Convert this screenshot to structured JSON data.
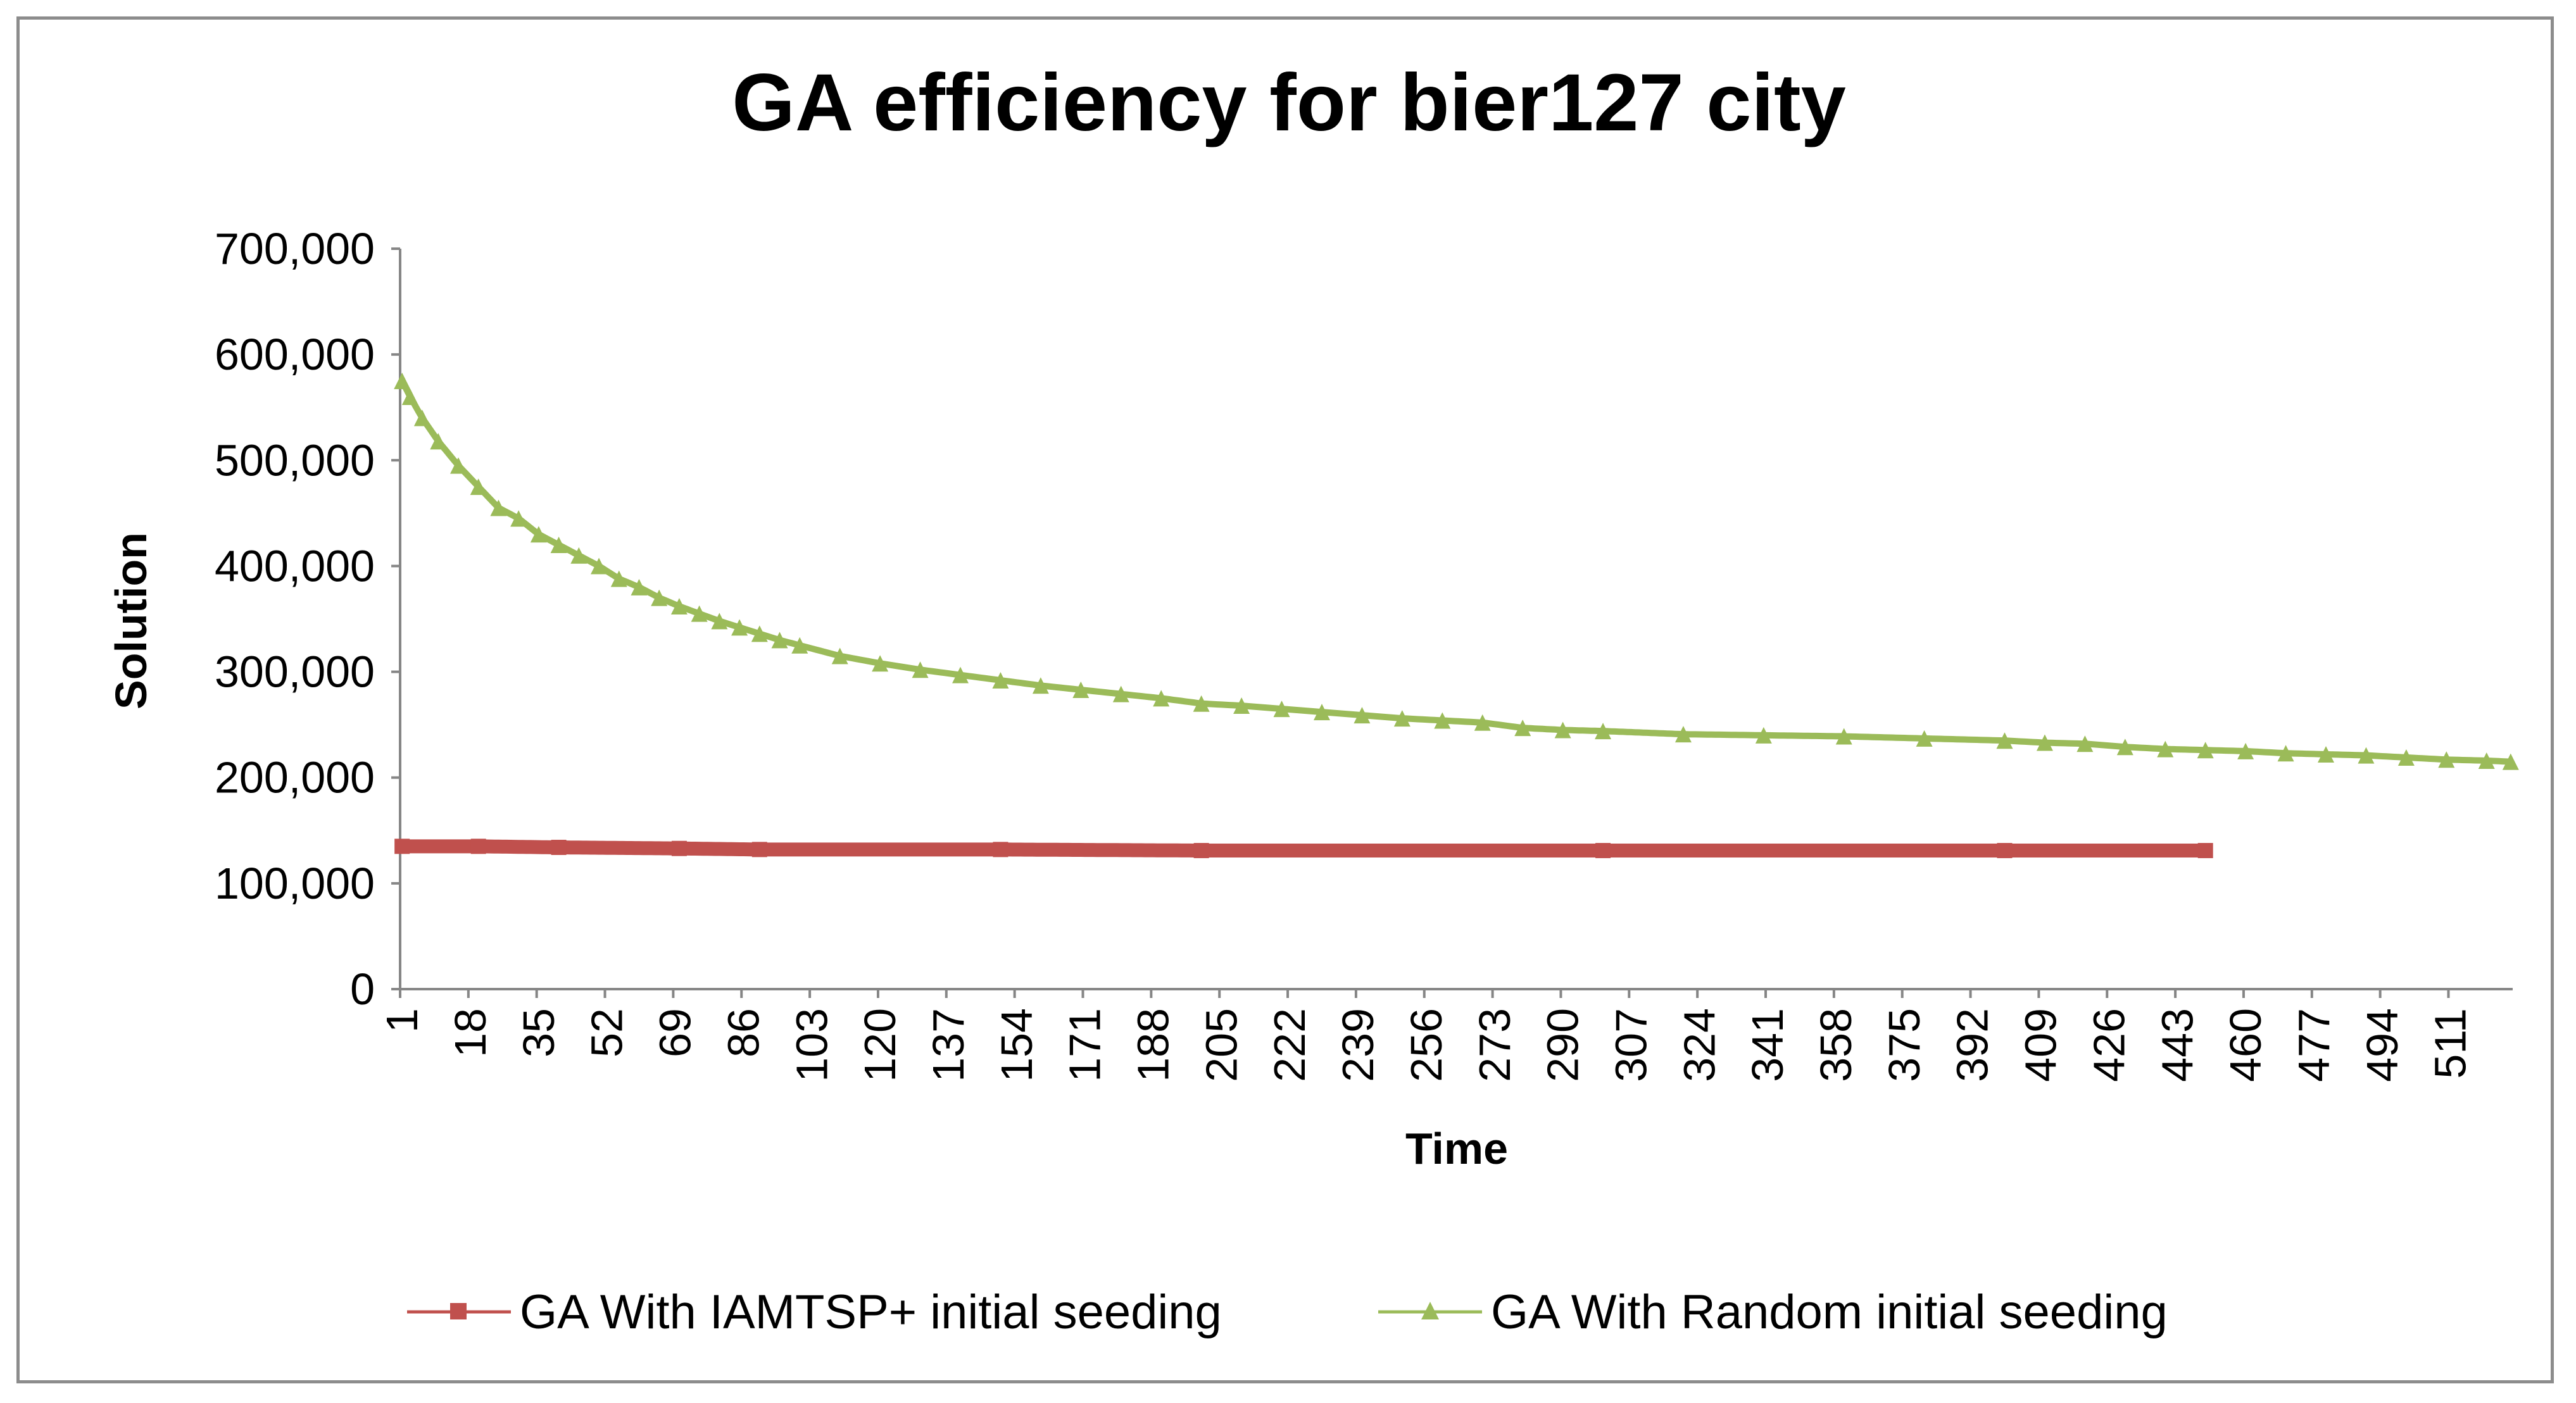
{
  "chart_data": {
    "type": "line",
    "title": "GA efficiency for bier127 city",
    "xlabel": "Time",
    "ylabel": "Solution",
    "ylim": [
      0,
      700000
    ],
    "yticks": [
      0,
      100000,
      200000,
      300000,
      400000,
      500000,
      600000,
      700000
    ],
    "ytick_labels": [
      "0",
      "100,000",
      "200,000",
      "300,000",
      "400,000",
      "500,000",
      "600,000",
      "700,000"
    ],
    "x_range": [
      1,
      526
    ],
    "xtick_labels": [
      "1",
      "18",
      "35",
      "52",
      "69",
      "86",
      "103",
      "120",
      "137",
      "154",
      "171",
      "188",
      "205",
      "222",
      "239",
      "256",
      "273",
      "290",
      "307",
      "324",
      "341",
      "358",
      "375",
      "392",
      "409",
      "426",
      "443",
      "460",
      "477",
      "494",
      "511"
    ],
    "grid": false,
    "legend_position": "bottom",
    "series": [
      {
        "name": "GA With IAMTSP+ initial seeding",
        "color": "#C0504D",
        "marker": "square",
        "x": [
          1,
          20,
          40,
          70,
          90,
          150,
          200,
          300,
          400,
          450
        ],
        "values": [
          135000,
          135000,
          134000,
          133000,
          132000,
          132000,
          131000,
          131000,
          131000,
          131000
        ]
      },
      {
        "name": "GA With Random initial seeding",
        "color": "#9BBB59",
        "marker": "triangle",
        "x": [
          1,
          3,
          6,
          10,
          15,
          20,
          25,
          30,
          35,
          40,
          45,
          50,
          55,
          60,
          65,
          70,
          75,
          80,
          85,
          90,
          95,
          100,
          110,
          120,
          130,
          140,
          150,
          160,
          170,
          180,
          190,
          200,
          210,
          220,
          230,
          240,
          250,
          260,
          270,
          280,
          290,
          300,
          320,
          340,
          360,
          380,
          400,
          410,
          420,
          430,
          440,
          450,
          460,
          470,
          480,
          490,
          500,
          510,
          520,
          526
        ],
        "values": [
          575000,
          560000,
          540000,
          518000,
          495000,
          475000,
          455000,
          445000,
          430000,
          420000,
          410000,
          400000,
          388000,
          380000,
          370000,
          362000,
          355000,
          348000,
          342000,
          336000,
          330000,
          325000,
          315000,
          308000,
          302000,
          297000,
          292000,
          287000,
          283000,
          279000,
          275000,
          270000,
          268000,
          265000,
          262000,
          259000,
          256000,
          254000,
          252000,
          247000,
          245000,
          244000,
          241000,
          240000,
          239000,
          237000,
          235000,
          233000,
          232000,
          229000,
          227000,
          226000,
          225000,
          223000,
          222000,
          221000,
          219000,
          217000,
          216000,
          215000
        ]
      }
    ]
  }
}
